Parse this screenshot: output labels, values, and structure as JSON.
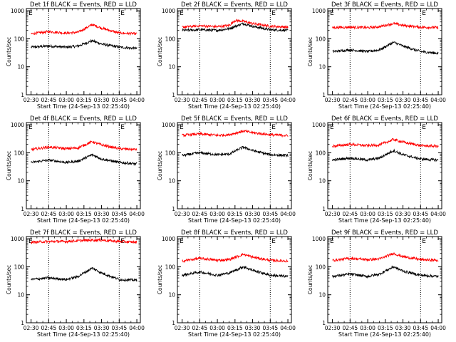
{
  "figure": {
    "xlabel": "Start Time (24-Sep-13 02:25:40)",
    "ylabel": "Counts/sec",
    "xticks": [
      "02:30",
      "02:45",
      "03:00",
      "03:15",
      "03:30",
      "03:45",
      "04:00"
    ],
    "yticks": [
      "1",
      "10",
      "100",
      "1000"
    ],
    "corner_markers": [
      "E",
      "E"
    ],
    "colors": {
      "events": "#000000",
      "lld": "#ff0000",
      "axes": "#000000"
    }
  },
  "chart_data": [
    {
      "type": "line",
      "title": "Det 1f BLACK = Events, RED = LLD",
      "scale": "log",
      "ylim": [
        1,
        1200
      ],
      "x_range": [
        "02:26",
        "04:03"
      ],
      "markers_x": [
        "02:45",
        "03:45",
        "04:03"
      ],
      "series": [
        {
          "name": "Events",
          "color": "#000000",
          "x": [
            "02:30",
            "02:45",
            "03:00",
            "03:10",
            "03:22",
            "03:30",
            "03:45",
            "04:00"
          ],
          "y": [
            50,
            55,
            50,
            55,
            85,
            65,
            50,
            45
          ]
        },
        {
          "name": "LLD",
          "color": "#ff0000",
          "x": [
            "02:30",
            "02:45",
            "03:00",
            "03:10",
            "03:22",
            "03:30",
            "03:45",
            "04:00"
          ],
          "y": [
            150,
            180,
            160,
            170,
            320,
            240,
            160,
            150
          ]
        }
      ]
    },
    {
      "type": "line",
      "title": "Det 2f BLACK = Events, RED = LLD",
      "scale": "log",
      "ylim": [
        1,
        1200
      ],
      "x_range": [
        "02:26",
        "04:03"
      ],
      "markers_x": [
        "02:45",
        "03:45",
        "04:03"
      ],
      "series": [
        {
          "name": "Events",
          "color": "#000000",
          "x": [
            "02:30",
            "02:45",
            "03:00",
            "03:10",
            "03:22",
            "03:30",
            "03:45",
            "04:00"
          ],
          "y": [
            200,
            210,
            200,
            230,
            350,
            280,
            210,
            200
          ]
        },
        {
          "name": "LLD",
          "color": "#ff0000",
          "x": [
            "02:30",
            "02:45",
            "03:00",
            "03:10",
            "03:15",
            "03:22",
            "03:30",
            "03:45",
            "04:00"
          ],
          "y": [
            260,
            290,
            270,
            300,
            450,
            420,
            350,
            280,
            260
          ]
        }
      ]
    },
    {
      "type": "line",
      "title": "Det 3f BLACK = Events, RED = LLD",
      "scale": "log",
      "ylim": [
        1,
        1200
      ],
      "x_range": [
        "02:26",
        "04:03"
      ],
      "markers_x": [
        "02:45",
        "03:45",
        "04:03"
      ],
      "series": [
        {
          "name": "Events",
          "color": "#000000",
          "x": [
            "02:30",
            "02:45",
            "03:00",
            "03:10",
            "03:22",
            "03:30",
            "03:45",
            "04:00"
          ],
          "y": [
            35,
            40,
            35,
            40,
            75,
            55,
            35,
            30
          ]
        },
        {
          "name": "LLD",
          "color": "#ff0000",
          "x": [
            "02:30",
            "02:45",
            "03:00",
            "03:10",
            "03:22",
            "03:30",
            "03:45",
            "04:00"
          ],
          "y": [
            250,
            260,
            250,
            270,
            350,
            300,
            260,
            250
          ]
        }
      ]
    },
    {
      "type": "line",
      "title": "Det 4f BLACK = Events, RED = LLD",
      "scale": "log",
      "ylim": [
        1,
        1200
      ],
      "x_range": [
        "02:26",
        "04:03"
      ],
      "markers_x": [
        "02:45",
        "03:45",
        "04:03"
      ],
      "series": [
        {
          "name": "Events",
          "color": "#000000",
          "x": [
            "02:30",
            "02:45",
            "03:00",
            "03:10",
            "03:22",
            "03:30",
            "03:45",
            "04:00"
          ],
          "y": [
            45,
            55,
            45,
            50,
            85,
            60,
            45,
            40
          ]
        },
        {
          "name": "LLD",
          "color": "#ff0000",
          "x": [
            "02:30",
            "02:45",
            "03:00",
            "03:10",
            "03:22",
            "03:30",
            "03:45",
            "04:00"
          ],
          "y": [
            130,
            160,
            140,
            150,
            250,
            190,
            140,
            130
          ]
        }
      ]
    },
    {
      "type": "line",
      "title": "Det 5f BLACK = Events, RED = LLD",
      "scale": "log",
      "ylim": [
        1,
        1200
      ],
      "x_range": [
        "02:26",
        "04:03"
      ],
      "markers_x": [
        "02:45",
        "03:45",
        "04:03"
      ],
      "series": [
        {
          "name": "Events",
          "color": "#000000",
          "x": [
            "02:30",
            "02:45",
            "03:00",
            "03:10",
            "03:22",
            "03:30",
            "03:45",
            "04:00"
          ],
          "y": [
            80,
            100,
            85,
            90,
            160,
            120,
            85,
            80
          ]
        },
        {
          "name": "LLD",
          "color": "#ff0000",
          "x": [
            "02:30",
            "02:45",
            "03:00",
            "03:10",
            "03:22",
            "03:30",
            "03:45",
            "04:00"
          ],
          "y": [
            420,
            470,
            420,
            440,
            600,
            520,
            440,
            410
          ]
        }
      ]
    },
    {
      "type": "line",
      "title": "Det 6f BLACK = Events, RED = LLD",
      "scale": "log",
      "ylim": [
        1,
        1200
      ],
      "x_range": [
        "02:26",
        "04:03"
      ],
      "markers_x": [
        "02:45",
        "03:45",
        "04:03"
      ],
      "series": [
        {
          "name": "Events",
          "color": "#000000",
          "x": [
            "02:30",
            "02:45",
            "03:00",
            "03:10",
            "03:22",
            "03:30",
            "03:45",
            "04:00"
          ],
          "y": [
            55,
            65,
            55,
            65,
            120,
            85,
            60,
            55
          ]
        },
        {
          "name": "LLD",
          "color": "#ff0000",
          "x": [
            "02:30",
            "02:45",
            "03:00",
            "03:10",
            "03:22",
            "03:30",
            "03:45",
            "04:00"
          ],
          "y": [
            170,
            200,
            180,
            190,
            300,
            240,
            180,
            170
          ]
        }
      ]
    },
    {
      "type": "line",
      "title": "Det 7f BLACK = Events, RED = LLD",
      "scale": "log",
      "ylim": [
        1,
        1200
      ],
      "x_range": [
        "02:26",
        "04:03"
      ],
      "markers_x": [
        "02:45",
        "03:45",
        "04:03"
      ],
      "series": [
        {
          "name": "Events",
          "color": "#000000",
          "x": [
            "02:30",
            "02:45",
            "03:00",
            "03:10",
            "03:22",
            "03:30",
            "03:45",
            "04:00"
          ],
          "y": [
            35,
            40,
            35,
            45,
            90,
            60,
            35,
            33
          ]
        },
        {
          "name": "LLD",
          "color": "#ff0000",
          "x": [
            "02:30",
            "02:45",
            "03:00",
            "03:10",
            "03:22",
            "03:30",
            "03:45",
            "04:00"
          ],
          "y": [
            750,
            800,
            800,
            850,
            900,
            900,
            800,
            750
          ]
        }
      ]
    },
    {
      "type": "line",
      "title": "Det 8f BLACK = Events, RED = LLD",
      "scale": "log",
      "ylim": [
        1,
        1200
      ],
      "x_range": [
        "02:26",
        "04:03"
      ],
      "markers_x": [
        "02:45",
        "03:45",
        "04:03"
      ],
      "series": [
        {
          "name": "Events",
          "color": "#000000",
          "x": [
            "02:30",
            "02:45",
            "03:00",
            "03:10",
            "03:22",
            "03:30",
            "03:45",
            "04:00"
          ],
          "y": [
            50,
            65,
            50,
            60,
            100,
            75,
            50,
            45
          ]
        },
        {
          "name": "LLD",
          "color": "#ff0000",
          "x": [
            "02:30",
            "02:45",
            "03:00",
            "03:10",
            "03:22",
            "03:30",
            "03:45",
            "04:00"
          ],
          "y": [
            160,
            200,
            170,
            180,
            280,
            220,
            170,
            160
          ]
        }
      ]
    },
    {
      "type": "line",
      "title": "Det 9f BLACK = Events, RED = LLD",
      "scale": "log",
      "ylim": [
        1,
        1200
      ],
      "x_range": [
        "02:26",
        "04:03"
      ],
      "markers_x": [
        "02:45",
        "03:45",
        "04:03"
      ],
      "series": [
        {
          "name": "Events",
          "color": "#000000",
          "x": [
            "02:30",
            "02:45",
            "03:00",
            "03:10",
            "03:22",
            "03:30",
            "03:45",
            "04:00"
          ],
          "y": [
            45,
            55,
            45,
            55,
            100,
            70,
            50,
            45
          ]
        },
        {
          "name": "LLD",
          "color": "#ff0000",
          "x": [
            "02:30",
            "02:45",
            "03:00",
            "03:10",
            "03:22",
            "03:30",
            "03:45",
            "04:00"
          ],
          "y": [
            170,
            200,
            180,
            190,
            300,
            230,
            180,
            170
          ]
        }
      ]
    }
  ]
}
